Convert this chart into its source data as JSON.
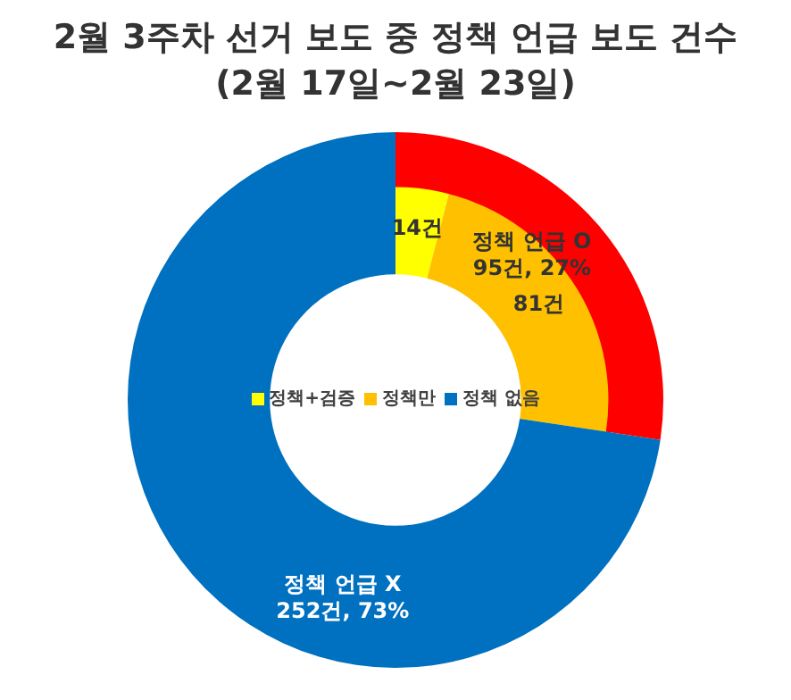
{
  "chart_data": [
    {
      "type": "donut",
      "title": "2월 3주차 선거 보도 중 정책 언급 보도 건수",
      "subtitle": "(2월 17일~2월 23일)",
      "categories": [
        "정책 언급 O",
        "정책 언급 X"
      ],
      "values": [
        95,
        252
      ],
      "colors": [
        "#ff0000",
        "#0070c0"
      ],
      "value_labels": [
        "95건, 27%",
        "252건, 73%"
      ]
    },
    {
      "type": "donut",
      "categories": [
        "정책+검증",
        "정책만",
        "정책 없음"
      ],
      "values": [
        14,
        81,
        252
      ],
      "colors": [
        "#ffff00",
        "#ffc000",
        "#0070c0"
      ],
      "value_labels": [
        "14건",
        "81건",
        null
      ],
      "legend": "center"
    }
  ]
}
